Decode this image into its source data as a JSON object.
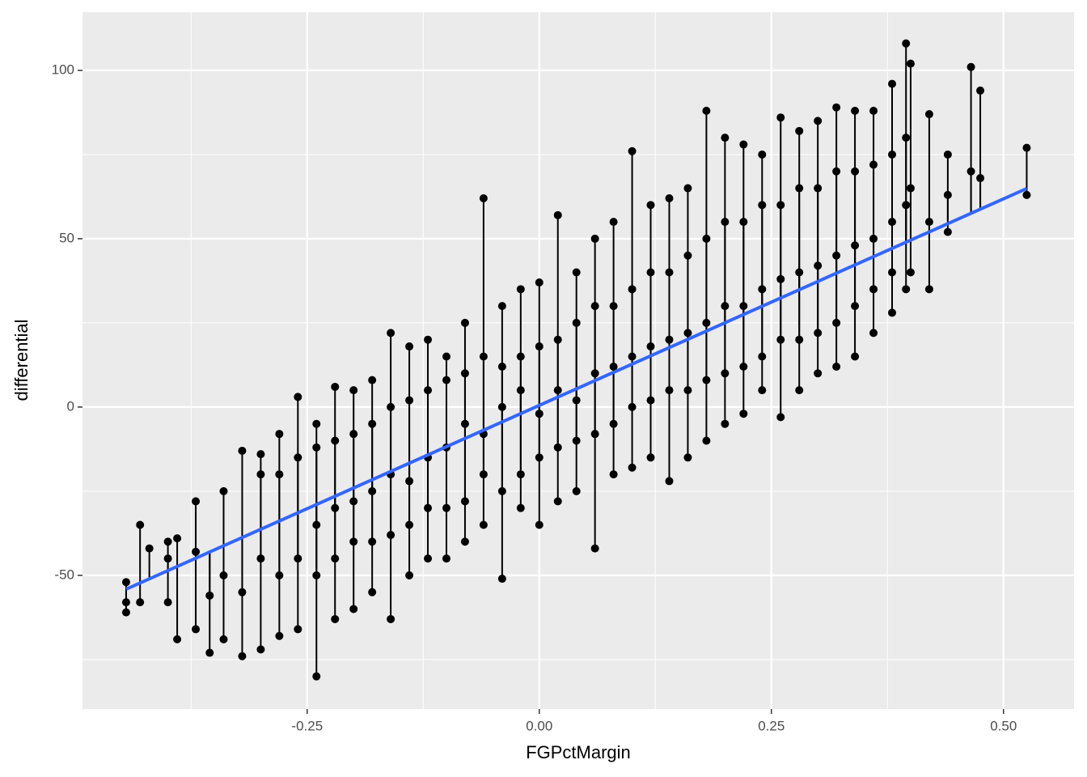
{
  "chart_data": {
    "type": "scatter",
    "xlabel": "FGPctMargin",
    "ylabel": "differential",
    "xlim": [
      -0.492,
      0.576
    ],
    "ylim": [
      -89.7,
      117.3
    ],
    "xticks": [
      -0.25,
      {
        "value": 0,
        "label": "0.00"
      },
      0.25,
      {
        "value": 0.5,
        "label": "0.50"
      }
    ],
    "yticks": [
      -50,
      0,
      50,
      100
    ],
    "grid": true,
    "color": "#000000",
    "x": [
      -0.445,
      -0.445,
      -0.445,
      -0.43,
      -0.43,
      -0.42,
      -0.4,
      -0.4,
      -0.4,
      -0.39,
      -0.39,
      -0.37,
      -0.37,
      -0.37,
      -0.355,
      -0.355,
      -0.34,
      -0.34,
      -0.34,
      -0.32,
      -0.32,
      -0.32,
      -0.3,
      -0.3,
      -0.3,
      -0.3,
      -0.28,
      -0.28,
      -0.28,
      -0.28,
      -0.26,
      -0.26,
      -0.26,
      -0.26,
      -0.24,
      -0.24,
      -0.24,
      -0.24,
      -0.24,
      -0.22,
      -0.22,
      -0.22,
      -0.22,
      -0.22,
      -0.2,
      -0.2,
      -0.2,
      -0.2,
      -0.2,
      -0.18,
      -0.18,
      -0.18,
      -0.18,
      -0.18,
      -0.16,
      -0.16,
      -0.16,
      -0.16,
      -0.16,
      -0.14,
      -0.14,
      -0.14,
      -0.14,
      -0.14,
      -0.12,
      -0.12,
      -0.12,
      -0.12,
      -0.12,
      -0.1,
      -0.1,
      -0.1,
      -0.1,
      -0.1,
      -0.08,
      -0.08,
      -0.08,
      -0.08,
      -0.08,
      -0.06,
      -0.06,
      -0.06,
      -0.06,
      -0.06,
      -0.04,
      -0.04,
      -0.04,
      -0.04,
      -0.04,
      -0.02,
      -0.02,
      -0.02,
      -0.02,
      -0.02,
      0,
      0,
      0,
      0,
      0,
      0.02,
      0.02,
      0.02,
      0.02,
      0.02,
      0.04,
      0.04,
      0.04,
      0.04,
      0.04,
      0.06,
      0.06,
      0.06,
      0.06,
      0.06,
      0.08,
      0.08,
      0.08,
      0.08,
      0.08,
      0.1,
      0.1,
      0.1,
      0.1,
      0.1,
      0.12,
      0.12,
      0.12,
      0.12,
      0.12,
      0.14,
      0.14,
      0.14,
      0.14,
      0.14,
      0.16,
      0.16,
      0.16,
      0.16,
      0.16,
      0.18,
      0.18,
      0.18,
      0.18,
      0.18,
      0.2,
      0.2,
      0.2,
      0.2,
      0.2,
      0.22,
      0.22,
      0.22,
      0.22,
      0.22,
      0.24,
      0.24,
      0.24,
      0.24,
      0.24,
      0.26,
      0.26,
      0.26,
      0.26,
      0.26,
      0.28,
      0.28,
      0.28,
      0.28,
      0.28,
      0.3,
      0.3,
      0.3,
      0.3,
      0.3,
      0.32,
      0.32,
      0.32,
      0.32,
      0.32,
      0.34,
      0.34,
      0.34,
      0.34,
      0.34,
      0.36,
      0.36,
      0.36,
      0.36,
      0.36,
      0.38,
      0.38,
      0.38,
      0.38,
      0.38,
      0.395,
      0.395,
      0.395,
      0.395,
      0.4,
      0.4,
      0.4,
      0.42,
      0.42,
      0.42,
      0.44,
      0.44,
      0.44,
      0.465,
      0.465,
      0.475,
      0.475,
      0.525,
      0.525
    ],
    "values": [
      -52,
      -61,
      -58,
      -35,
      -58,
      -42,
      -40,
      -58,
      -45,
      -69,
      -39,
      -66,
      -28,
      -43,
      -73,
      -56,
      -25,
      -69,
      -50,
      -74,
      -13,
      -55,
      -72,
      -14,
      -45,
      -20,
      -68,
      -8,
      -50,
      -20,
      -66,
      3,
      -45,
      -15,
      -80,
      -5,
      -50,
      -12,
      -35,
      -63,
      6,
      -45,
      -10,
      -30,
      -60,
      5,
      -40,
      -8,
      -28,
      -55,
      8,
      -40,
      -5,
      -25,
      -63,
      22,
      -38,
      0,
      -20,
      -50,
      18,
      -35,
      2,
      -22,
      -45,
      20,
      -30,
      5,
      -15,
      -45,
      15,
      -30,
      8,
      -12,
      -40,
      25,
      -28,
      10,
      -5,
      -35,
      62,
      -20,
      15,
      -8,
      -51,
      30,
      -25,
      12,
      0,
      -30,
      35,
      -20,
      15,
      5,
      -35,
      37,
      -15,
      18,
      -2,
      -28,
      57,
      -12,
      20,
      5,
      -25,
      40,
      -10,
      25,
      2,
      -42,
      50,
      -8,
      30,
      10,
      -20,
      55,
      -5,
      30,
      12,
      -18,
      76,
      0,
      35,
      15,
      -15,
      60,
      2,
      40,
      18,
      -22,
      62,
      5,
      40,
      20,
      -15,
      65,
      5,
      45,
      22,
      -10,
      88,
      8,
      50,
      25,
      -5,
      80,
      10,
      55,
      30,
      -2,
      78,
      12,
      55,
      30,
      5,
      75,
      15,
      60,
      35,
      -3,
      86,
      20,
      60,
      38,
      5,
      82,
      20,
      65,
      40,
      10,
      85,
      22,
      65,
      42,
      12,
      89,
      25,
      70,
      45,
      15,
      88,
      30,
      70,
      48,
      22,
      88,
      35,
      72,
      50,
      28,
      96,
      40,
      75,
      55,
      108,
      35,
      60,
      80,
      40,
      102,
      65,
      35,
      87,
      55,
      52,
      75,
      63,
      101,
      70,
      94,
      68,
      77,
      63
    ],
    "trend": {
      "x": [
        -0.445,
        0.525
      ],
      "values": [
        -54.1,
        64.9
      ],
      "color": "#3366ff"
    }
  }
}
